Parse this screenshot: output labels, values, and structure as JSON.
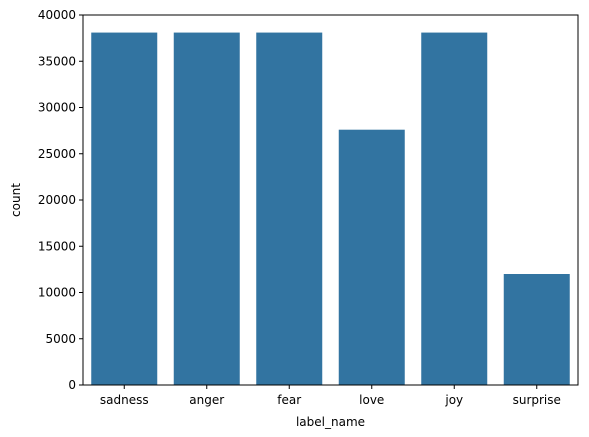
{
  "chart_data": {
    "type": "bar",
    "categories": [
      "sadness",
      "anger",
      "fear",
      "love",
      "joy",
      "surprise"
    ],
    "values": [
      38100,
      38100,
      38100,
      27600,
      38100,
      12000
    ],
    "xlabel": "label_name",
    "ylabel": "count",
    "ylim": [
      0,
      40000
    ],
    "yticks": [
      0,
      5000,
      10000,
      15000,
      20000,
      25000,
      30000,
      35000,
      40000
    ],
    "grid": false,
    "bar_color": "#3274a1"
  }
}
